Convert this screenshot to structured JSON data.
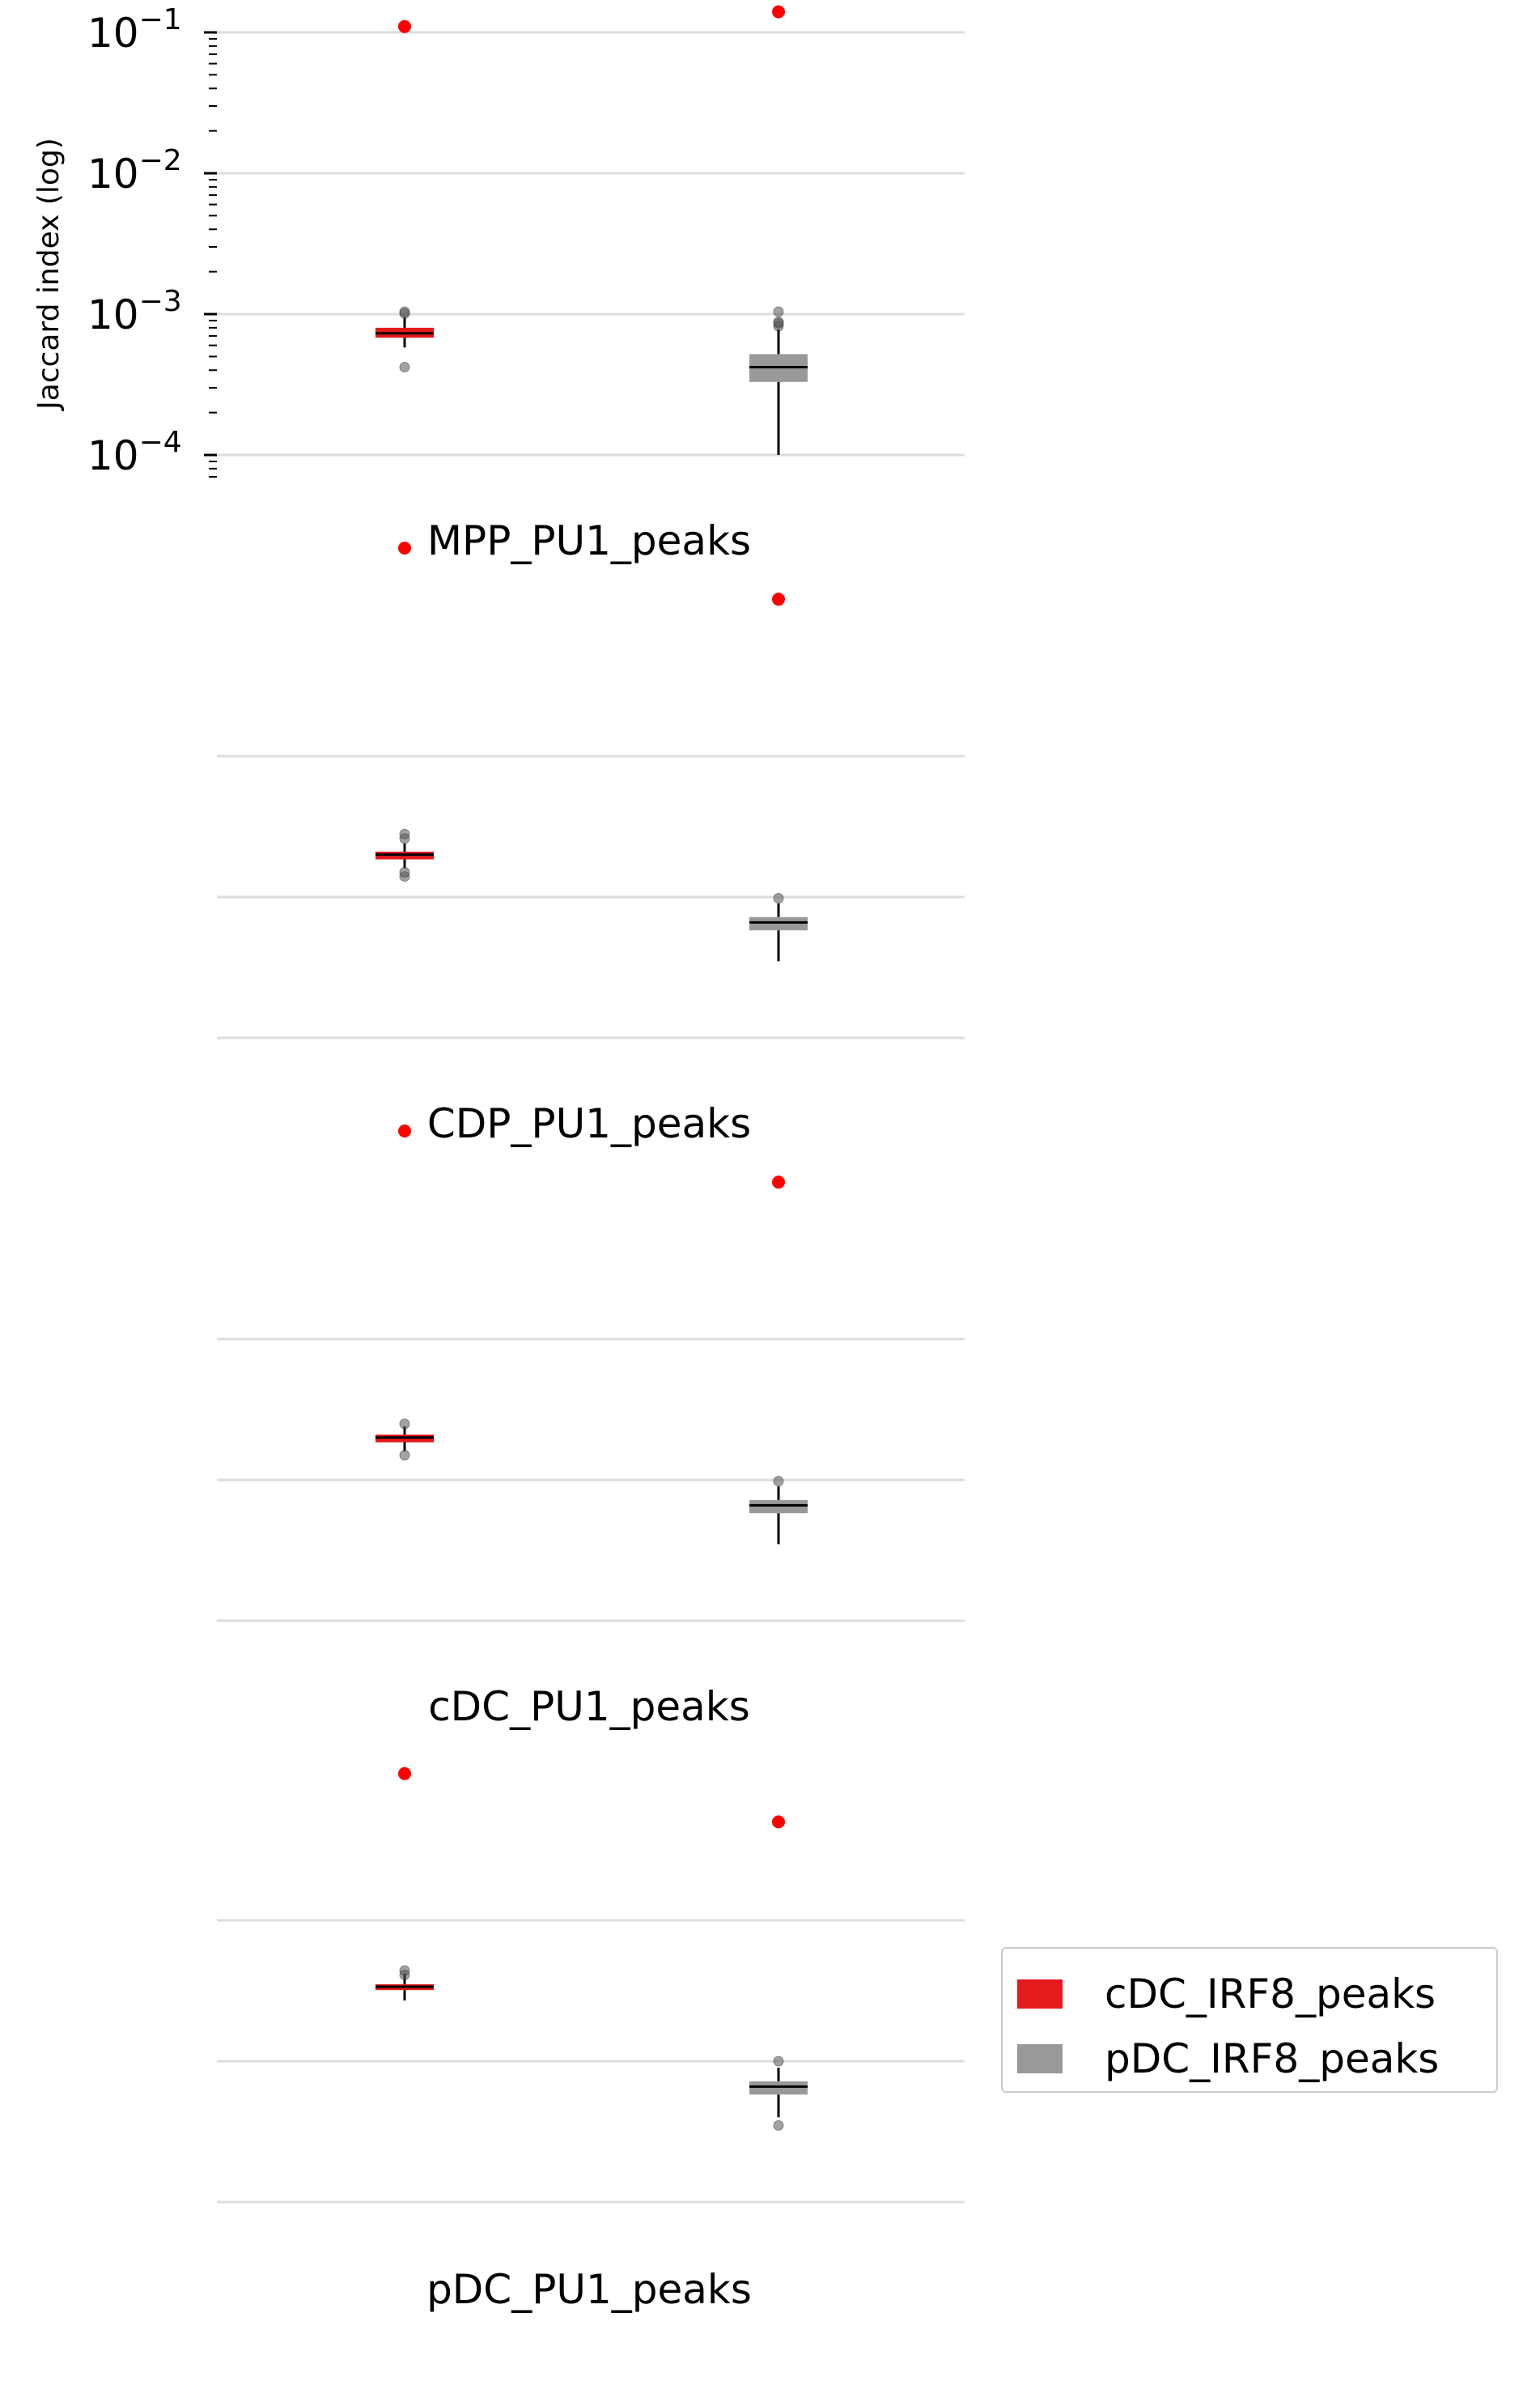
{
  "chart_data": {
    "type": "box",
    "yscale": "log",
    "ylabel": "Jaccard index (log)",
    "ylim": [
      0.0001,
      0.1
    ],
    "yticks": [
      {
        "value": 0.1,
        "base": "10",
        "exp": "−1"
      },
      {
        "value": 0.01,
        "base": "10",
        "exp": "−2"
      },
      {
        "value": 0.001,
        "base": "10",
        "exp": "−3"
      },
      {
        "value": 0.0001,
        "base": "10",
        "exp": "−4"
      }
    ],
    "grid": true,
    "legend_position": "right",
    "series": [
      {
        "name": "cDC_IRF8_peaks",
        "color": "#e41a1c",
        "median_color": "#000000"
      },
      {
        "name": "pDC_IRF8_peaks",
        "color": "#999999",
        "median_color": "#000000"
      }
    ],
    "panels": [
      {
        "label": "MPP_PU1_peaks",
        "boxes": [
          {
            "series": "cDC_IRF8_peaks",
            "q1": 0.00068,
            "median": 0.00073,
            "q3": 0.0008,
            "whisker_low": 0.00058,
            "whisker_high": 0.00095,
            "fliers": [
              0.00042,
              0.00101,
              0.00104
            ],
            "observed": 0.11
          },
          {
            "series": "pDC_IRF8_peaks",
            "q1": 0.00033,
            "median": 0.00042,
            "q3": 0.00052,
            "whisker_low": 0.0001,
            "whisker_high": 0.00078,
            "fliers": [
              0.00082,
              0.00086,
              0.00088,
              0.00104
            ],
            "observed": 0.14
          }
        ]
      },
      {
        "label": "CDP_PU1_peaks",
        "boxes": [
          {
            "series": "cDC_IRF8_peaks",
            "q1": 0.00185,
            "median": 0.002,
            "q3": 0.0021,
            "whisker_low": 0.0016,
            "whisker_high": 0.0024,
            "fliers": [
              0.0014,
              0.0015,
              0.0026,
              0.0028
            ],
            "observed": 0.3
          },
          {
            "series": "pDC_IRF8_peaks",
            "q1": 0.00058,
            "median": 0.00066,
            "q3": 0.00072,
            "whisker_low": 0.00035,
            "whisker_high": 0.0009,
            "fliers": [
              0.00098
            ],
            "observed": 0.13
          }
        ]
      },
      {
        "label": "cDC_PU1_peaks",
        "boxes": [
          {
            "series": "cDC_IRF8_peaks",
            "q1": 0.00185,
            "median": 0.002,
            "q3": 0.0021,
            "whisker_low": 0.0016,
            "whisker_high": 0.0024,
            "fliers": [
              0.0015,
              0.0025
            ],
            "observed": 0.3
          },
          {
            "series": "pDC_IRF8_peaks",
            "q1": 0.00058,
            "median": 0.00066,
            "q3": 0.00072,
            "whisker_low": 0.00035,
            "whisker_high": 0.0009,
            "fliers": [
              0.00098
            ],
            "observed": 0.13
          }
        ]
      },
      {
        "label": "pDC_PU1_peaks",
        "boxes": [
          {
            "series": "cDC_IRF8_peaks",
            "q1": 0.0032,
            "median": 0.00338,
            "q3": 0.00352,
            "whisker_low": 0.0027,
            "whisker_high": 0.0042,
            "fliers": [
              0.0041,
              0.0044
            ],
            "observed": 0.11
          },
          {
            "series": "pDC_IRF8_peaks",
            "q1": 0.00058,
            "median": 0.00066,
            "q3": 0.00072,
            "whisker_low": 0.0004,
            "whisker_high": 0.0009,
            "fliers": [
              0.00035,
              0.001
            ],
            "observed": 0.05
          }
        ]
      }
    ]
  }
}
